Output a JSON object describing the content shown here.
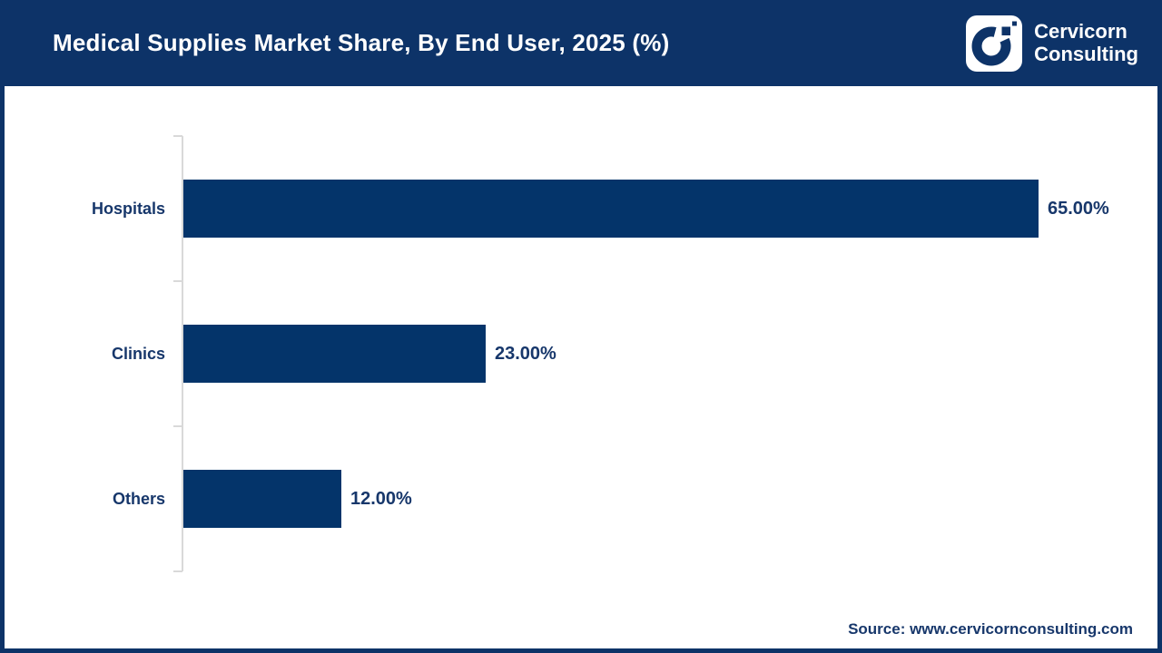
{
  "header": {
    "logo": {
      "line1": "Cervicorn",
      "line2": "Consulting",
      "icon": "cervicorn-c-mark"
    }
  },
  "footer": {
    "source": "Source: www.cervicornconsulting.com"
  },
  "colors": {
    "header_navy": "#0d3368",
    "bar_navy": "#04346a",
    "text_navy": "#17376b",
    "axis_gray": "#d9d9d9",
    "background": "#ffffff"
  },
  "chart_data": {
    "type": "bar",
    "orientation": "horizontal",
    "title": "Medical Supplies Market Share, By End User, 2025 (%)",
    "categories": [
      "Hospitals",
      "Clinics",
      "Others"
    ],
    "values": [
      65,
      23,
      12
    ],
    "value_labels": [
      "65.00%",
      "23.00%",
      "12.00%"
    ],
    "xlabel": "",
    "ylabel": "",
    "xlim": [
      0,
      72
    ],
    "grid": false,
    "legend": false,
    "bar_color": "#04346a",
    "value_label_position": "right-of-bar"
  }
}
